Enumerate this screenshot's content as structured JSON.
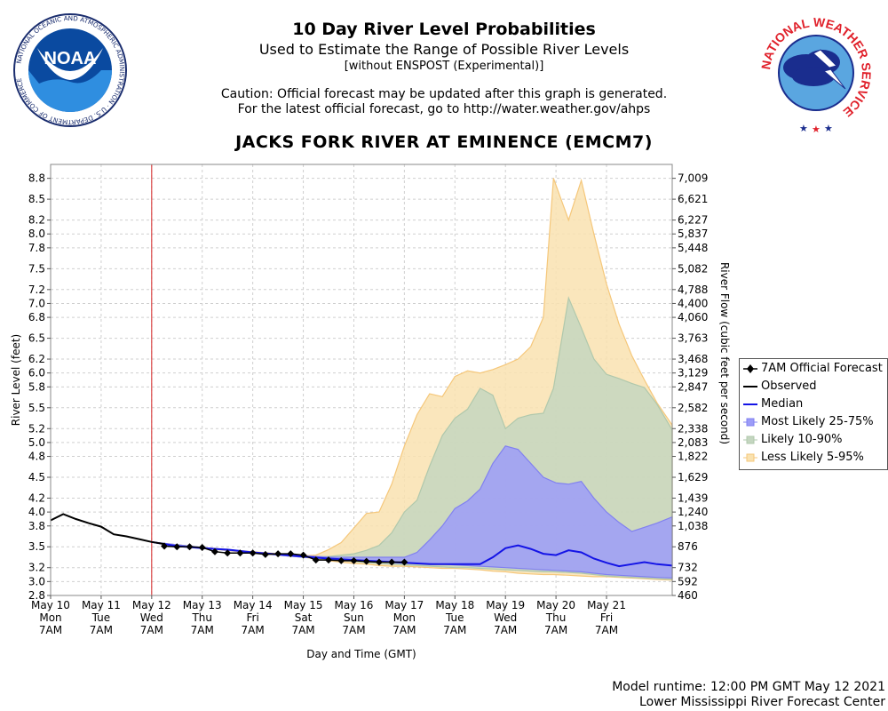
{
  "header": {
    "title": "10 Day River Level Probabilities",
    "subtitle": "Used to Estimate the Range of Possible River Levels",
    "note": "[without ENSPOST (Experimental)]",
    "caution_line1": "Caution: Official forecast may be updated after this graph is generated.",
    "caution_line2": "For the latest official forecast, go to http://water.weather.gov/ahps",
    "station": "JACKS FORK RIVER AT EMINENCE (EMCM7)"
  },
  "logos": {
    "noaa_text": "NOAA",
    "noaa_ring": "NATIONAL OCEANIC AND ATMOSPHERIC ADMINISTRATION · U.S. DEPARTMENT OF COMMERCE",
    "nws_ring": "NATIONAL WEATHER SERVICE"
  },
  "footer": {
    "runtime": "Model runtime: 12:00 PM GMT May 12 2021",
    "center": "Lower Mississippi River Forecast Center"
  },
  "colors": {
    "observed": "#000000",
    "median": "#1414e6",
    "band_25_75": "#9c9cf8",
    "band_10_90": "#c4d6c0",
    "band_5_95": "#f9e2b0",
    "band_5_95_edge": "#f5c77a",
    "band_10_90_edge": "#b0c8ac",
    "band_25_75_edge": "#8080f0",
    "forecast_time_line": "#d42020",
    "grid": "#cfcfcf"
  },
  "chart_data": {
    "type": "area",
    "xlabel": "Day and Time (GMT)",
    "ylabel": "River Level (feet)",
    "y2label": "River Flow (cubic feet per second)",
    "ylim": [
      2.8,
      9.0
    ],
    "xlim": [
      0,
      12.3
    ],
    "grid": true,
    "legend_position": "right",
    "x_ticks": [
      {
        "x": 0,
        "line1": "May 10",
        "line2": "Mon",
        "line3": "7AM"
      },
      {
        "x": 1,
        "line1": "May 11",
        "line2": "Tue",
        "line3": "7AM"
      },
      {
        "x": 2,
        "line1": "May 12",
        "line2": "Wed",
        "line3": "7AM"
      },
      {
        "x": 3,
        "line1": "May 13",
        "line2": "Thu",
        "line3": "7AM"
      },
      {
        "x": 4,
        "line1": "May 14",
        "line2": "Fri",
        "line3": "7AM"
      },
      {
        "x": 5,
        "line1": "May 15",
        "line2": "Sat",
        "line3": "7AM"
      },
      {
        "x": 6,
        "line1": "May 16",
        "line2": "Sun",
        "line3": "7AM"
      },
      {
        "x": 7,
        "line1": "May 17",
        "line2": "Mon",
        "line3": "7AM"
      },
      {
        "x": 8,
        "line1": "May 18",
        "line2": "Tue",
        "line3": "7AM"
      },
      {
        "x": 9,
        "line1": "May 19",
        "line2": "Wed",
        "line3": "7AM"
      },
      {
        "x": 10,
        "line1": "May 20",
        "line2": "Thu",
        "line3": "7AM"
      },
      {
        "x": 11,
        "line1": "May 21",
        "line2": "Fri",
        "line3": "7AM"
      }
    ],
    "y_ticks": [
      {
        "stage": 2.8,
        "flow": "460"
      },
      {
        "stage": 3.0,
        "flow": "592"
      },
      {
        "stage": 3.2,
        "flow": "732"
      },
      {
        "stage": 3.5,
        "flow": "876"
      },
      {
        "stage": 3.8,
        "flow": "1,038"
      },
      {
        "stage": 4.0,
        "flow": "1,240"
      },
      {
        "stage": 4.2,
        "flow": "1,439"
      },
      {
        "stage": 4.5,
        "flow": "1,629"
      },
      {
        "stage": 4.8,
        "flow": "1,822"
      },
      {
        "stage": 5.0,
        "flow": "2,083"
      },
      {
        "stage": 5.2,
        "flow": "2,338"
      },
      {
        "stage": 5.5,
        "flow": "2,582"
      },
      {
        "stage": 5.8,
        "flow": "2,847"
      },
      {
        "stage": 6.0,
        "flow": "3,129"
      },
      {
        "stage": 6.2,
        "flow": "3,468"
      },
      {
        "stage": 6.5,
        "flow": "3,763"
      },
      {
        "stage": 6.8,
        "flow": "4,060"
      },
      {
        "stage": 7.0,
        "flow": "4,400"
      },
      {
        "stage": 7.2,
        "flow": "4,788"
      },
      {
        "stage": 7.5,
        "flow": "5,082"
      },
      {
        "stage": 7.8,
        "flow": "5,448"
      },
      {
        "stage": 8.0,
        "flow": "5,837"
      },
      {
        "stage": 8.2,
        "flow": "6,227"
      },
      {
        "stage": 8.5,
        "flow": "6,621"
      },
      {
        "stage": 8.8,
        "flow": "7,009"
      }
    ],
    "forecast_start_x": 2,
    "observed": {
      "name": "Observed",
      "x": [
        0,
        0.25,
        0.5,
        0.75,
        1.0,
        1.25,
        1.5,
        1.75,
        2.0,
        2.25
      ],
      "y": [
        3.88,
        3.97,
        3.9,
        3.84,
        3.79,
        3.68,
        3.65,
        3.61,
        3.57,
        3.54
      ]
    },
    "official_forecast": {
      "name": "7AM Official Forecast",
      "x": [
        2.25,
        2.5,
        2.75,
        3.0,
        3.25,
        3.5,
        3.75,
        4.0,
        4.25,
        4.5,
        4.75,
        5.0,
        5.25,
        5.5,
        5.75,
        6.0,
        6.25,
        6.5,
        6.75,
        7.0
      ],
      "y": [
        3.51,
        3.5,
        3.5,
        3.49,
        3.43,
        3.41,
        3.41,
        3.41,
        3.39,
        3.4,
        3.4,
        3.38,
        3.31,
        3.31,
        3.3,
        3.3,
        3.29,
        3.28,
        3.28,
        3.28
      ]
    },
    "median": {
      "name": "Median",
      "x": [
        2.0,
        2.5,
        3.0,
        3.5,
        4.0,
        4.5,
        5.0,
        5.5,
        6.0,
        6.5,
        7.0,
        7.5,
        8.0,
        8.25,
        8.5,
        8.75,
        9.0,
        9.25,
        9.5,
        9.75,
        10.0,
        10.25,
        10.5,
        10.75,
        11.0,
        11.25,
        11.5,
        11.75,
        12.0,
        12.3
      ],
      "y": [
        3.57,
        3.51,
        3.48,
        3.46,
        3.42,
        3.39,
        3.36,
        3.33,
        3.31,
        3.29,
        3.27,
        3.25,
        3.25,
        3.25,
        3.25,
        3.35,
        3.48,
        3.52,
        3.47,
        3.4,
        3.38,
        3.45,
        3.42,
        3.33,
        3.27,
        3.22,
        3.25,
        3.28,
        3.25,
        3.23
      ]
    },
    "bands": [
      {
        "name": "Less Likely 5-95%",
        "x": [
          2.0,
          3.0,
          4.0,
          4.5,
          5.0,
          5.25,
          5.5,
          5.75,
          6.0,
          6.25,
          6.5,
          6.75,
          7.0,
          7.25,
          7.5,
          7.75,
          8.0,
          8.25,
          8.5,
          8.75,
          9.0,
          9.25,
          9.5,
          9.75,
          9.95,
          10.25,
          10.5,
          10.75,
          11.0,
          11.25,
          11.5,
          11.75,
          12.0,
          12.3
        ],
        "upper": [
          3.57,
          3.49,
          3.43,
          3.4,
          3.37,
          3.38,
          3.46,
          3.56,
          3.77,
          3.98,
          4.0,
          4.4,
          4.95,
          5.4,
          5.7,
          5.66,
          5.95,
          6.03,
          6.0,
          6.05,
          6.12,
          6.2,
          6.38,
          6.8,
          8.8,
          8.2,
          8.77,
          8.0,
          7.28,
          6.7,
          6.25,
          5.9,
          5.57,
          5.25
        ],
        "lower": [
          3.57,
          3.48,
          3.41,
          3.38,
          3.35,
          3.33,
          3.3,
          3.28,
          3.26,
          3.25,
          3.23,
          3.22,
          3.22,
          3.21,
          3.2,
          3.19,
          3.19,
          3.18,
          3.17,
          3.15,
          3.14,
          3.12,
          3.11,
          3.1,
          3.1,
          3.09,
          3.08,
          3.07,
          3.07,
          3.06,
          3.05,
          3.04,
          3.03,
          3.02
        ]
      },
      {
        "name": "Likely 10-90%",
        "x": [
          2.0,
          3.0,
          4.0,
          4.5,
          5.0,
          5.5,
          6.0,
          6.25,
          6.5,
          6.75,
          7.0,
          7.25,
          7.5,
          7.75,
          8.0,
          8.25,
          8.5,
          8.75,
          9.0,
          9.25,
          9.5,
          9.75,
          9.95,
          10.25,
          10.5,
          10.75,
          11.0,
          11.25,
          11.5,
          11.75,
          12.0,
          12.3
        ],
        "upper": [
          3.57,
          3.49,
          3.42,
          3.39,
          3.36,
          3.36,
          3.4,
          3.45,
          3.52,
          3.7,
          4.0,
          4.17,
          4.66,
          5.1,
          5.35,
          5.48,
          5.78,
          5.68,
          5.2,
          5.35,
          5.4,
          5.42,
          5.78,
          7.08,
          6.65,
          6.2,
          5.98,
          5.92,
          5.85,
          5.79,
          5.55,
          5.18
        ],
        "lower": [
          3.57,
          3.48,
          3.42,
          3.38,
          3.35,
          3.32,
          3.29,
          3.27,
          3.26,
          3.25,
          3.24,
          3.23,
          3.22,
          3.21,
          3.2,
          3.2,
          3.19,
          3.18,
          3.17,
          3.16,
          3.15,
          3.14,
          3.14,
          3.13,
          3.12,
          3.1,
          3.08,
          3.07,
          3.06,
          3.05,
          3.04,
          3.03
        ]
      },
      {
        "name": "Most Likely 25-75%",
        "x": [
          2.0,
          3.0,
          4.0,
          4.5,
          5.0,
          5.5,
          6.0,
          6.5,
          7.0,
          7.25,
          7.5,
          7.75,
          8.0,
          8.25,
          8.5,
          8.75,
          9.0,
          9.25,
          9.5,
          9.75,
          10.0,
          10.25,
          10.5,
          10.75,
          11.0,
          11.25,
          11.5,
          11.75,
          12.0,
          12.3
        ],
        "upper": [
          3.57,
          3.49,
          3.42,
          3.39,
          3.37,
          3.35,
          3.35,
          3.35,
          3.35,
          3.42,
          3.6,
          3.8,
          4.05,
          4.16,
          4.33,
          4.7,
          4.95,
          4.9,
          4.7,
          4.5,
          4.42,
          4.4,
          4.44,
          4.2,
          4.0,
          3.85,
          3.72,
          3.78,
          3.84,
          3.93
        ],
        "lower": [
          3.57,
          3.48,
          3.42,
          3.38,
          3.35,
          3.33,
          3.31,
          3.3,
          3.28,
          3.27,
          3.26,
          3.25,
          3.24,
          3.23,
          3.22,
          3.21,
          3.2,
          3.19,
          3.18,
          3.17,
          3.16,
          3.15,
          3.14,
          3.12,
          3.1,
          3.09,
          3.08,
          3.07,
          3.06,
          3.05
        ]
      }
    ],
    "legend": [
      {
        "key": "official",
        "label": "7AM Official Forecast"
      },
      {
        "key": "observed",
        "label": "Observed"
      },
      {
        "key": "median",
        "label": "Median"
      },
      {
        "key": "b2575",
        "label": "Most Likely 25-75%"
      },
      {
        "key": "b1090",
        "label": "Likely 10-90%"
      },
      {
        "key": "b595",
        "label": "Less Likely 5-95%"
      }
    ]
  }
}
